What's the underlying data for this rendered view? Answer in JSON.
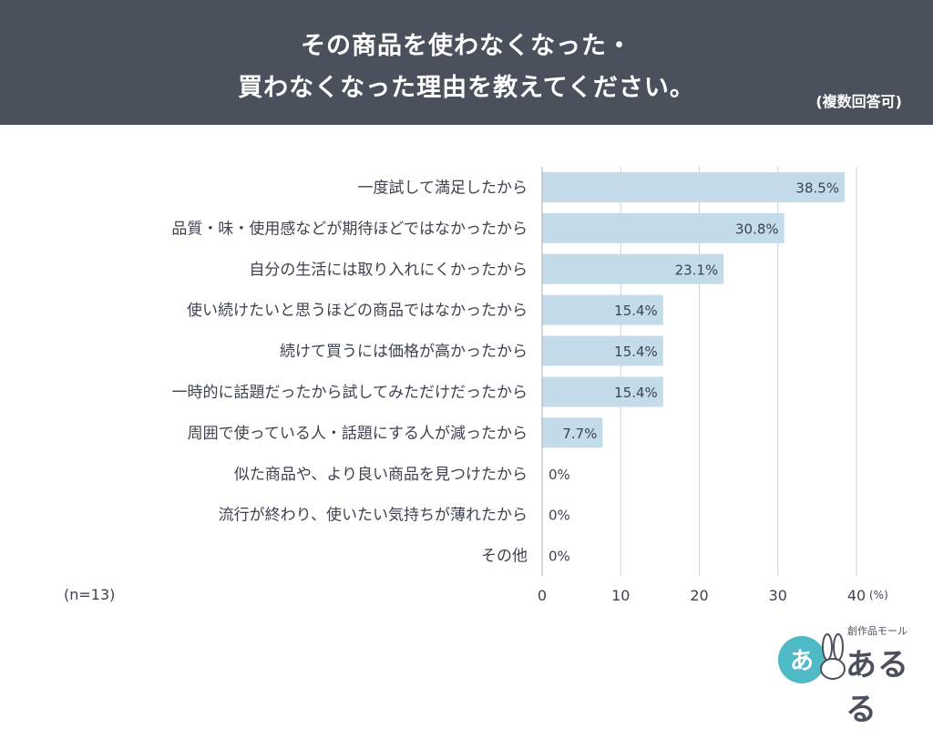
{
  "header": {
    "title_line1": "その商品を使わなくなった・",
    "title_line2": "買わなくなった理由を教えてください。",
    "note": "(複数回答可)"
  },
  "sample_size": "(n=13)",
  "logo": {
    "text": "あるる",
    "subtext": "創作品モール",
    "mark_text": "あ"
  },
  "colors": {
    "header_bg": "#4b505d",
    "bar": "#c4dbea",
    "grid": "#d0d3d8",
    "text": "#3d4350",
    "logo_accent": "#4fb9c6"
  },
  "chart_data": {
    "type": "bar",
    "orientation": "horizontal",
    "categories": [
      "一度試して満足したから",
      "品質・味・使用感などが期待ほどではなかったから",
      "自分の生活には取り入れにくかったから",
      "使い続けたいと思うほどの商品ではなかったから",
      "続けて買うには価格が高かったから",
      "一時的に話題だったから試してみただけだったから",
      "周囲で使っている人・話題にする人が減ったから",
      "似た商品や、より良い商品を見つけたから",
      "流行が終わり、使いたい気持ちが薄れたから",
      "その他"
    ],
    "values": [
      38.5,
      30.8,
      23.1,
      15.4,
      15.4,
      15.4,
      7.7,
      0,
      0,
      0
    ],
    "value_labels": [
      "38.5%",
      "30.8%",
      "23.1%",
      "15.4%",
      "15.4%",
      "15.4%",
      "7.7%",
      "0%",
      "0%",
      "0%"
    ],
    "xlim": [
      0,
      40
    ],
    "xticks": [
      0,
      10,
      20,
      30,
      40
    ],
    "xtick_labels": [
      "0",
      "10",
      "20",
      "30",
      "40"
    ],
    "unit_label": "(%)",
    "grid": true
  }
}
